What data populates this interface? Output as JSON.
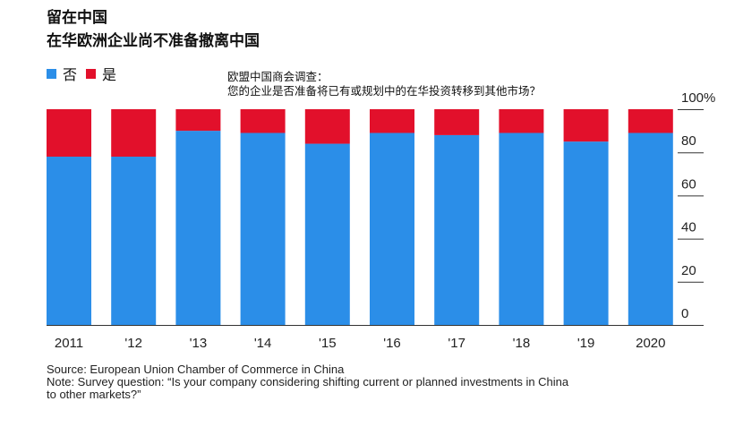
{
  "title_line1": "留在中国",
  "title_line2": "在华欧洲企业尚不准备撤离中国",
  "legend": [
    {
      "label": "否",
      "color": "#2b8ee8"
    },
    {
      "label": "是",
      "color": "#e2102b"
    }
  ],
  "question": {
    "line1": "欧盟中国商会调查：",
    "line2": "您的企业是否准备将已有或规划中的在华投资转移到其他市场？"
  },
  "footer": {
    "source": "Source: European Union Chamber of Commerce in China",
    "note_line1": "Note: Survey question: “Is your company considering shifting current or planned investments in China",
    "note_line2": "to other markets?”"
  },
  "chart_data": {
    "type": "bar",
    "stacked": true,
    "categories": [
      "2011",
      "'12",
      "'13",
      "'14",
      "'15",
      "'16",
      "'17",
      "'18",
      "'19",
      "2020"
    ],
    "series": [
      {
        "name": "否",
        "color": "#2b8ee8",
        "values": [
          78,
          78,
          90,
          89,
          84,
          89,
          88,
          89,
          85,
          89
        ]
      },
      {
        "name": "是",
        "color": "#e2102b",
        "values": [
          22,
          22,
          10,
          11,
          16,
          11,
          12,
          11,
          15,
          11
        ]
      }
    ],
    "ylim": [
      0,
      100
    ],
    "yticks": [
      0,
      20,
      40,
      60,
      80,
      100
    ],
    "ytick_labels": [
      "0",
      "20",
      "40",
      "60",
      "80",
      "100%"
    ],
    "axis_position": "right",
    "grid": false
  }
}
